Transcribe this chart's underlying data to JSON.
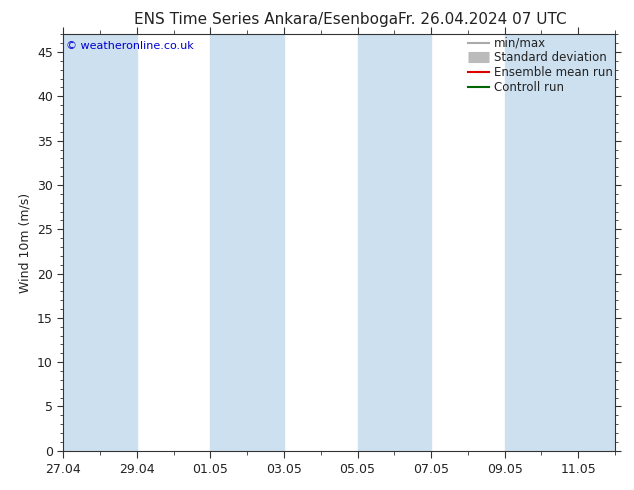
{
  "title": "ENS Time Series Ankara/Esenboga",
  "title_right": "Fr. 26.04.2024 07 UTC",
  "ylabel": "Wind 10m (m/s)",
  "watermark": "© weatheronline.co.uk",
  "ylim": [
    0,
    47
  ],
  "yticks": [
    0,
    5,
    10,
    15,
    20,
    25,
    30,
    35,
    40,
    45
  ],
  "bg_color": "#ffffff",
  "plot_bg_color": "#ffffff",
  "shade_color": "#cce0f0",
  "shade_alpha": 1.0,
  "total_days": 15,
  "x_tick_labels": [
    "27.04",
    "29.04",
    "01.05",
    "03.05",
    "05.05",
    "07.05",
    "09.05",
    "11.05"
  ],
  "x_tick_positions": [
    0,
    2,
    4,
    6,
    8,
    10,
    12,
    14
  ],
  "shade_bands": [
    [
      0,
      2
    ],
    [
      4,
      6
    ],
    [
      8,
      10
    ],
    [
      12,
      15
    ]
  ],
  "legend_entries": [
    {
      "label": "min/max",
      "color": "#aaaaaa",
      "lw": 1.5,
      "ls": "-"
    },
    {
      "label": "Standard deviation",
      "color": "#bbbbbb",
      "lw": 8,
      "ls": "-"
    },
    {
      "label": "Ensemble mean run",
      "color": "#dd0000",
      "lw": 1.5,
      "ls": "-"
    },
    {
      "label": "Controll run",
      "color": "#006600",
      "lw": 1.5,
      "ls": "-"
    }
  ],
  "font_color": "#222222",
  "title_fontsize": 11,
  "axis_fontsize": 9,
  "legend_fontsize": 8.5,
  "watermark_color": "#0000cc",
  "watermark_fontsize": 8,
  "tick_color": "#222222"
}
